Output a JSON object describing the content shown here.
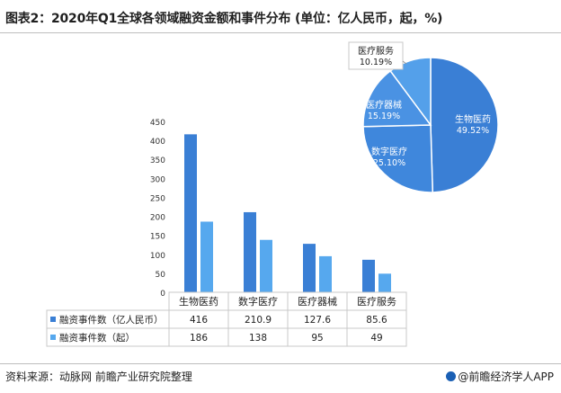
{
  "title": "图表2：2020年Q1全球各领域融资金额和事件分布 (单位：亿人民币，起，%)",
  "source": "资料来源：动脉网 前瞻产业研究院整理",
  "credit": "@前瞻经济学人APP",
  "colors": {
    "series1": "#3a7fd5",
    "series2": "#56a8ee",
    "grid": "#d0d0d0",
    "pie_edge": "#ffffff"
  },
  "chart_data": [
    {
      "type": "bar",
      "categories": [
        "生物医药",
        "数字医疗",
        "医疗器械",
        "医疗服务"
      ],
      "series": [
        {
          "name": "融资事件数（亿人民币）",
          "values": [
            416,
            210.9,
            127.6,
            85.6
          ]
        },
        {
          "name": "融资事件数（起）",
          "values": [
            186,
            138,
            95,
            49
          ]
        }
      ],
      "value_labels": [
        [
          "416",
          "210.9",
          "127.6",
          "85.6"
        ],
        [
          "186",
          "138",
          "95",
          "49"
        ]
      ],
      "ylim": [
        0,
        450
      ],
      "yticks": [
        0,
        50,
        100,
        150,
        200,
        250,
        300,
        350,
        400,
        450
      ],
      "grid": false,
      "legend": "data-table-below"
    },
    {
      "type": "pie",
      "slices": [
        {
          "label": "生物医药",
          "value": 49.52,
          "pct_label": "49.52%",
          "color": "#3a7fd5"
        },
        {
          "label": "数字医疗",
          "value": 25.1,
          "pct_label": "25.10%",
          "color": "#3f87dc"
        },
        {
          "label": "医疗器械",
          "value": 15.19,
          "pct_label": "15.19%",
          "color": "#4a92e3"
        },
        {
          "label": "医疗服务",
          "value": 10.19,
          "pct_label": "10.19%",
          "color": "#54a0ea"
        }
      ]
    }
  ]
}
